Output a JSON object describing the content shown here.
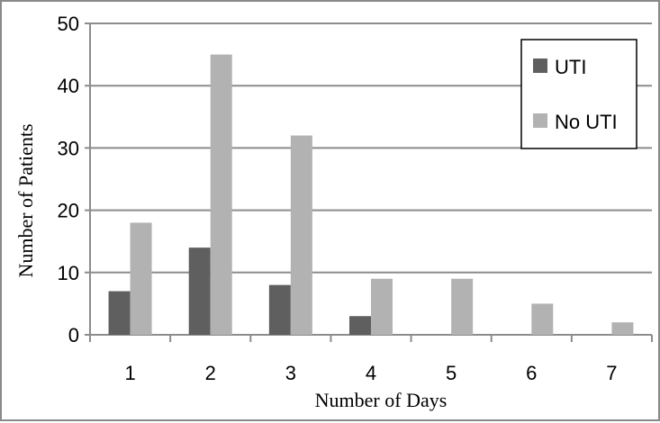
{
  "chart_data": {
    "type": "bar",
    "categories": [
      "1",
      "2",
      "3",
      "4",
      "5",
      "6",
      "7"
    ],
    "series": [
      {
        "name": "UTI",
        "values": [
          7,
          14,
          8,
          3,
          0,
          0,
          0
        ],
        "color": "#5f5f5f"
      },
      {
        "name": "No UTI",
        "values": [
          18,
          45,
          32,
          9,
          9,
          5,
          2
        ],
        "color": "#b2b2b2"
      }
    ],
    "xlabel": "Number of Days",
    "ylabel": "Number of Patients",
    "ylim": [
      0,
      50
    ],
    "yticks": [
      0,
      10,
      20,
      30,
      40,
      50
    ],
    "grid": true,
    "legend_position": "top-right"
  },
  "colors": {
    "gridline": "#8c8c8c",
    "axis": "#8c8c8c",
    "frame": "#8a8a8a"
  }
}
